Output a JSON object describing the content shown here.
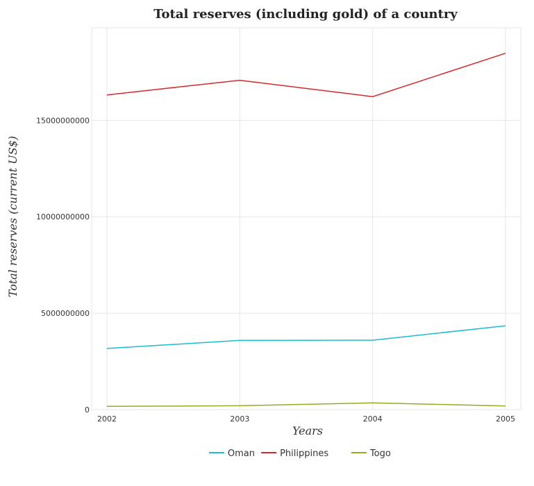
{
  "chart_data": {
    "type": "line",
    "title": "Total reserves (including gold) of a country",
    "xlabel": "Years",
    "ylabel": "Total reserves (current US$)",
    "x": [
      "2002",
      "2003",
      "2004",
      "2005"
    ],
    "ylim": [
      0,
      19800000000
    ],
    "yticks": [
      0,
      5000000000,
      10000000000,
      15000000000
    ],
    "ytick_labels": [
      "0",
      "5000000000",
      "10000000000",
      "15000000000"
    ],
    "grid": true,
    "legend_position": "bottom-center",
    "series": [
      {
        "name": "Oman",
        "color": "#17becf",
        "values": [
          3170000000,
          3590000000,
          3600000000,
          4350000000
        ]
      },
      {
        "name": "Philippines",
        "color": "#d62728",
        "values": [
          16320000000,
          17080000000,
          16230000000,
          18480000000
        ]
      },
      {
        "name": "Togo",
        "color": "#9aaa1e",
        "values": [
          170000000,
          200000000,
          350000000,
          190000000
        ]
      }
    ]
  }
}
